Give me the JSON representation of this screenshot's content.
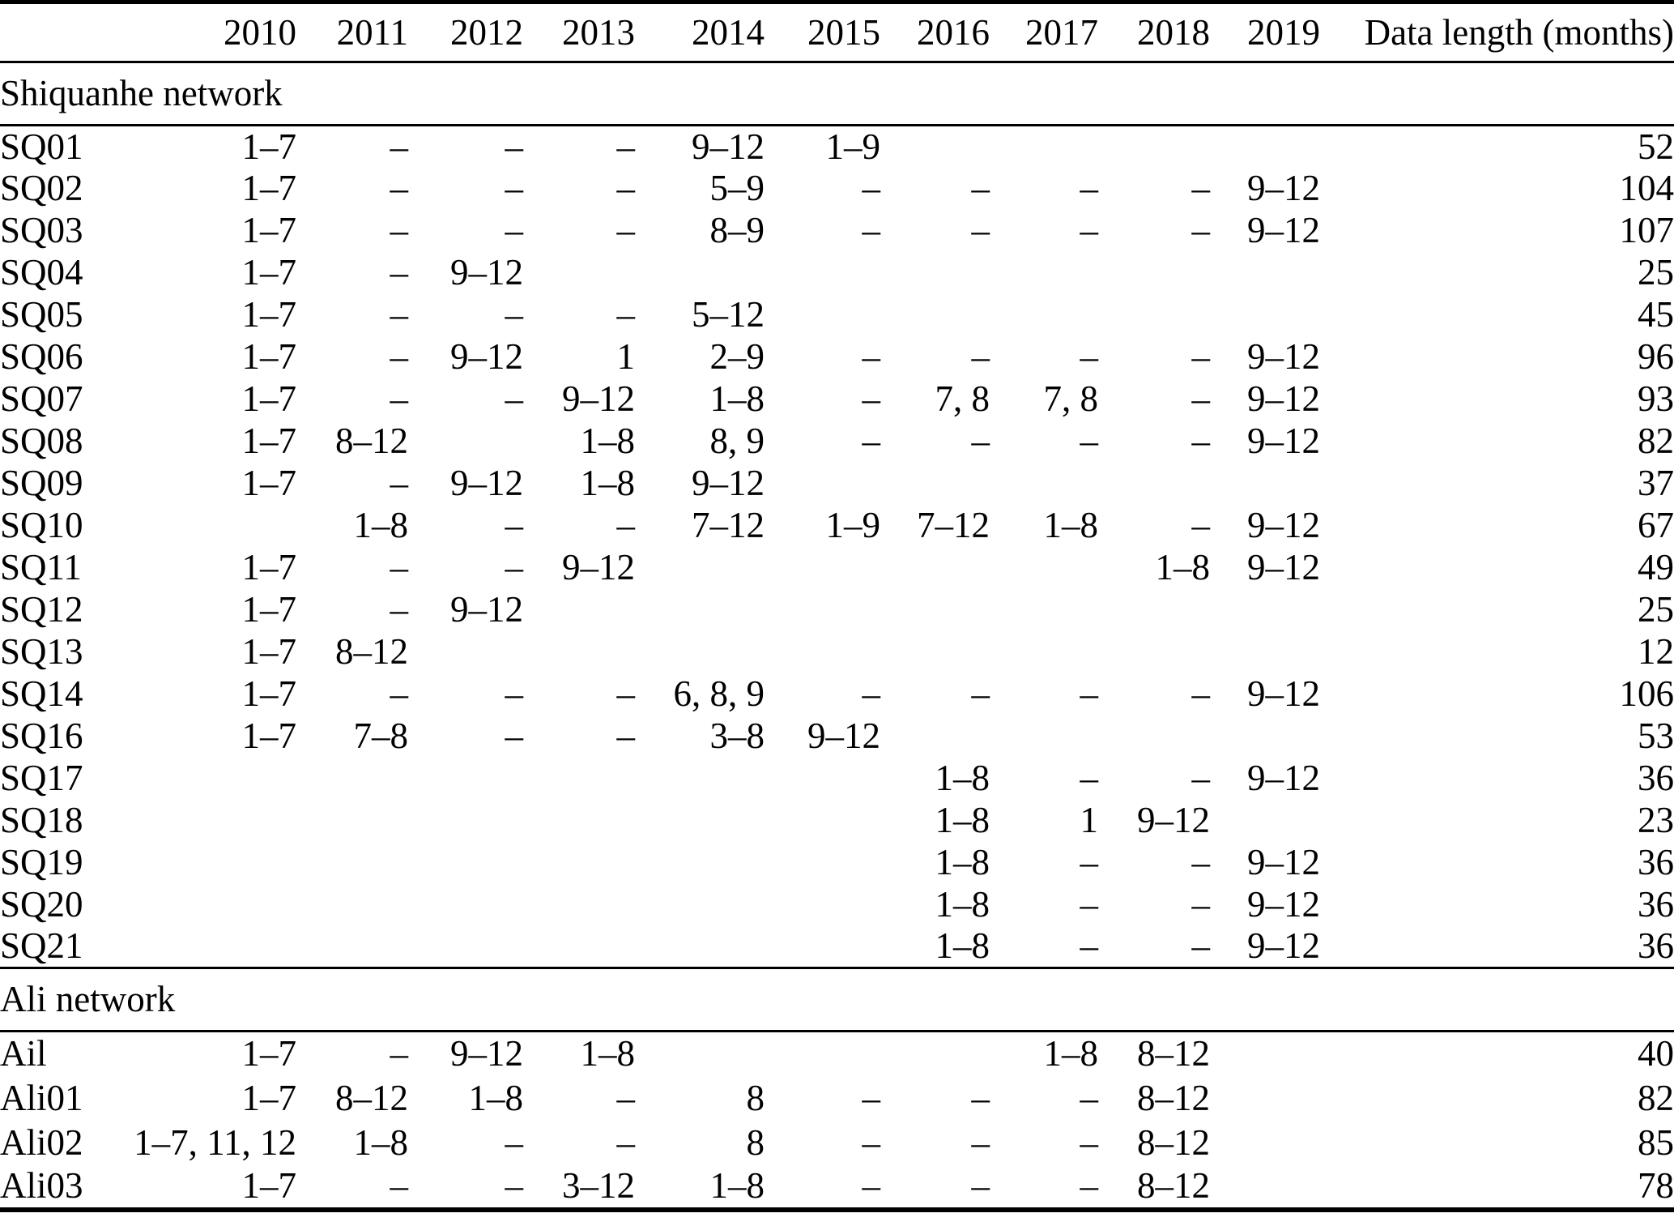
{
  "table": {
    "columns": [
      "",
      "2010",
      "2011",
      "2012",
      "2013",
      "2014",
      "2015",
      "2016",
      "2017",
      "2018",
      "2019",
      "Data length (months)"
    ],
    "sections": [
      {
        "label": "Shiquanhe network",
        "rows": [
          {
            "station": "SQ01",
            "cells": [
              "1–7",
              "–",
              "–",
              "–",
              "9–12",
              "1–9",
              "",
              "",
              "",
              ""
            ],
            "length": "52"
          },
          {
            "station": "SQ02",
            "cells": [
              "1–7",
              "–",
              "–",
              "–",
              "5–9",
              "–",
              "–",
              "–",
              "–",
              "9–12"
            ],
            "length": "104"
          },
          {
            "station": "SQ03",
            "cells": [
              "1–7",
              "–",
              "–",
              "–",
              "8–9",
              "–",
              "–",
              "–",
              "–",
              "9–12"
            ],
            "length": "107"
          },
          {
            "station": "SQ04",
            "cells": [
              "1–7",
              "–",
              "9–12",
              "",
              "",
              "",
              "",
              "",
              "",
              ""
            ],
            "length": "25"
          },
          {
            "station": "SQ05",
            "cells": [
              "1–7",
              "–",
              "–",
              "–",
              "5–12",
              "",
              "",
              "",
              "",
              ""
            ],
            "length": "45"
          },
          {
            "station": "SQ06",
            "cells": [
              "1–7",
              "–",
              "9–12",
              "1",
              "2–9",
              "–",
              "–",
              "–",
              "–",
              "9–12"
            ],
            "length": "96"
          },
          {
            "station": "SQ07",
            "cells": [
              "1–7",
              "–",
              "–",
              "9–12",
              "1–8",
              "–",
              "7, 8",
              "7, 8",
              "–",
              "9–12"
            ],
            "length": "93"
          },
          {
            "station": "SQ08",
            "cells": [
              "1–7",
              "8–12",
              "",
              "1–8",
              "8, 9",
              "–",
              "–",
              "–",
              "–",
              "9–12"
            ],
            "length": "82"
          },
          {
            "station": "SQ09",
            "cells": [
              "1–7",
              "–",
              "9–12",
              "1–8",
              "9–12",
              "",
              "",
              "",
              "",
              ""
            ],
            "length": "37"
          },
          {
            "station": "SQ10",
            "cells": [
              "",
              "1–8",
              "–",
              "–",
              "7–12",
              "1–9",
              "7–12",
              "1–8",
              "–",
              "9–12"
            ],
            "length": "67"
          },
          {
            "station": "SQ11",
            "cells": [
              "1–7",
              "–",
              "–",
              "9–12",
              "",
              "",
              "",
              "",
              "1–8",
              "9–12"
            ],
            "length": "49"
          },
          {
            "station": "SQ12",
            "cells": [
              "1–7",
              "–",
              "9–12",
              "",
              "",
              "",
              "",
              "",
              "",
              ""
            ],
            "length": "25"
          },
          {
            "station": "SQ13",
            "cells": [
              "1–7",
              "8–12",
              "",
              "",
              "",
              "",
              "",
              "",
              "",
              ""
            ],
            "length": "12"
          },
          {
            "station": "SQ14",
            "cells": [
              "1–7",
              "–",
              "–",
              "–",
              "6, 8, 9",
              "–",
              "–",
              "–",
              "–",
              "9–12"
            ],
            "length": "106"
          },
          {
            "station": "SQ16",
            "cells": [
              "1–7",
              "7–8",
              "–",
              "–",
              "3–8",
              "9–12",
              "",
              "",
              "",
              ""
            ],
            "length": "53"
          },
          {
            "station": "SQ17",
            "cells": [
              "",
              "",
              "",
              "",
              "",
              "",
              "1–8",
              "–",
              "–",
              "9–12"
            ],
            "length": "36"
          },
          {
            "station": "SQ18",
            "cells": [
              "",
              "",
              "",
              "",
              "",
              "",
              "1–8",
              "1",
              "9–12",
              ""
            ],
            "length": "23"
          },
          {
            "station": "SQ19",
            "cells": [
              "",
              "",
              "",
              "",
              "",
              "",
              "1–8",
              "–",
              "–",
              "9–12"
            ],
            "length": "36"
          },
          {
            "station": "SQ20",
            "cells": [
              "",
              "",
              "",
              "",
              "",
              "",
              "1–8",
              "–",
              "–",
              "9–12"
            ],
            "length": "36"
          },
          {
            "station": "SQ21",
            "cells": [
              "",
              "",
              "",
              "",
              "",
              "",
              "1–8",
              "–",
              "–",
              "9–12"
            ],
            "length": "36"
          }
        ]
      },
      {
        "label": "Ali network",
        "rows": [
          {
            "station": "Ail",
            "cells": [
              "1–7",
              "–",
              "9–12",
              "1–8",
              "",
              "",
              "",
              "1–8",
              "8–12",
              ""
            ],
            "length": "40"
          },
          {
            "station": "Ali01",
            "cells": [
              "1–7",
              "8–12",
              "1–8",
              "–",
              "8",
              "–",
              "–",
              "–",
              "8–12",
              ""
            ],
            "length": "82"
          },
          {
            "station": "Ali02",
            "cells": [
              "1–7, 11, 12",
              "1–8",
              "–",
              "–",
              "8",
              "–",
              "–",
              "–",
              "8–12",
              ""
            ],
            "length": "85"
          },
          {
            "station": "Ali03",
            "cells": [
              "1–7",
              "–",
              "–",
              "3–12",
              "1–8",
              "–",
              "–",
              "–",
              "8–12",
              ""
            ],
            "length": "78"
          }
        ]
      }
    ]
  }
}
